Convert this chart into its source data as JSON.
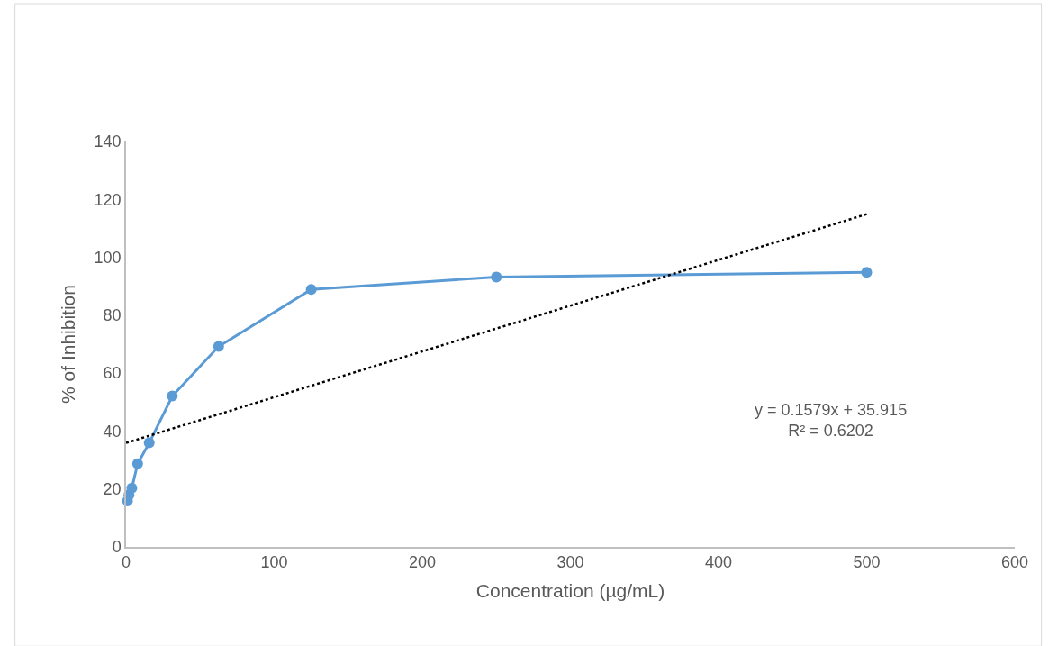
{
  "chart_data": {
    "type": "line",
    "xlabel": "Concentration (µg/mL)",
    "ylabel": "% of Inhibition",
    "xlim": [
      0,
      600
    ],
    "xticks": [
      0,
      100,
      200,
      300,
      400,
      500,
      600
    ],
    "ylim": [
      0,
      140
    ],
    "yticks": [
      0,
      20,
      40,
      60,
      80,
      100,
      120,
      140
    ],
    "marker": "circle",
    "line_style": "solid",
    "x": [
      0.98,
      1.95,
      3.9,
      7.81,
      15.63,
      31.25,
      62.5,
      125,
      250,
      500
    ],
    "series": [
      {
        "color": "#5b9bd5",
        "values": [
          15.9,
          18,
          20.3,
          28.7,
          35.9,
          52.1,
          69.2,
          88.9,
          93.2,
          94.8
        ]
      },
      {
        "type": "line",
        "x": [
          0,
          500
        ],
        "color": "#000000",
        "marker": "none",
        "line_style": "dotted",
        "values": [
          35.9,
          114.9
        ]
      }
    ],
    "annotations": [
      "y = 0.1579x + 35.915\nR² = 0.6202"
    ]
  }
}
